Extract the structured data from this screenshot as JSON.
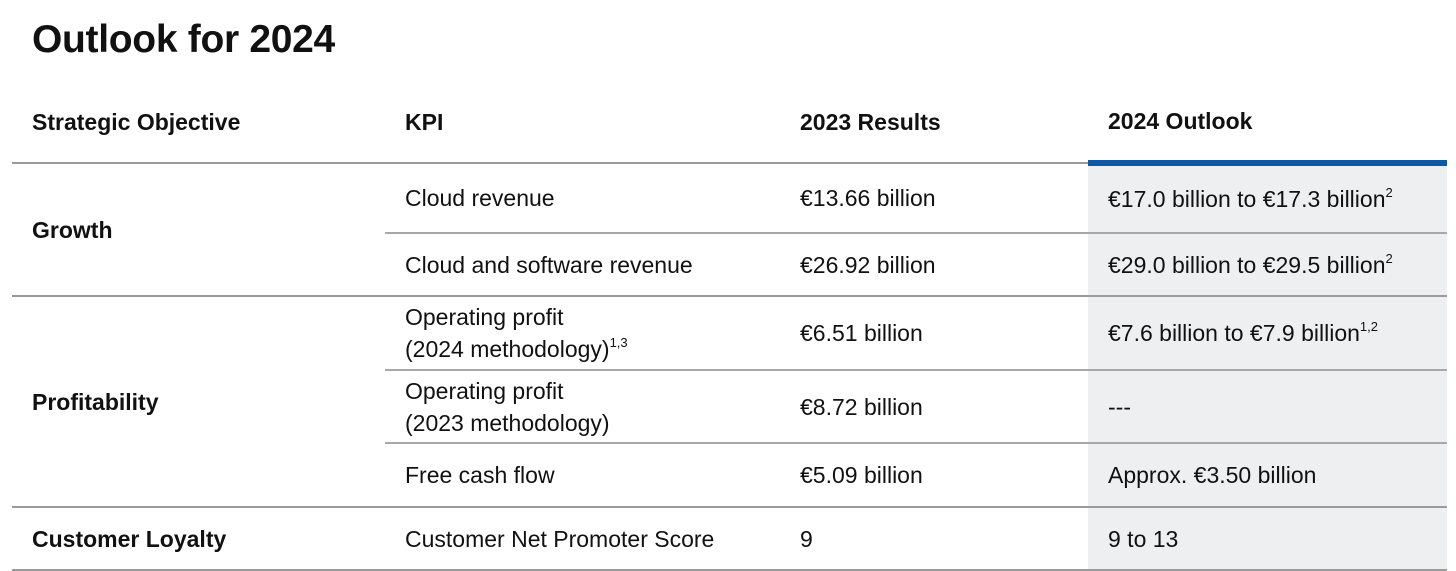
{
  "title": "Outlook for 2024",
  "table": {
    "headers": [
      "Strategic Objective",
      "KPI",
      "2023 Results",
      "2024 Outlook"
    ],
    "groups": [
      {
        "objective": "Growth",
        "rows": [
          {
            "kpi": [
              "Cloud revenue"
            ],
            "result": "€13.66 billion",
            "outlook": "€17.0 billion to €17.3 billion",
            "outlook_note": "2"
          },
          {
            "kpi": [
              "Cloud and software revenue"
            ],
            "result": "€26.92 billion",
            "outlook": "€29.0 billion to €29.5 billion",
            "outlook_note": "2"
          }
        ]
      },
      {
        "objective": "Profitability",
        "rows": [
          {
            "kpi": [
              "Operating profit",
              "(2024 methodology)"
            ],
            "kpi_note": "1,3",
            "result": "€6.51 billion",
            "outlook": "€7.6 billion to €7.9 billion",
            "outlook_note": "1,2"
          },
          {
            "kpi": [
              "Operating profit",
              "(2023 methodology)"
            ],
            "result": "€8.72 billion",
            "outlook": "---"
          },
          {
            "kpi": [
              "Free cash flow"
            ],
            "result": "€5.09 billion",
            "outlook": "Approx. €3.50 billion"
          }
        ]
      },
      {
        "objective": "Customer Loyalty",
        "rows": [
          {
            "kpi": [
              "Customer Net Promoter Score"
            ],
            "result": "9",
            "outlook": "9 to 13"
          }
        ]
      }
    ]
  }
}
